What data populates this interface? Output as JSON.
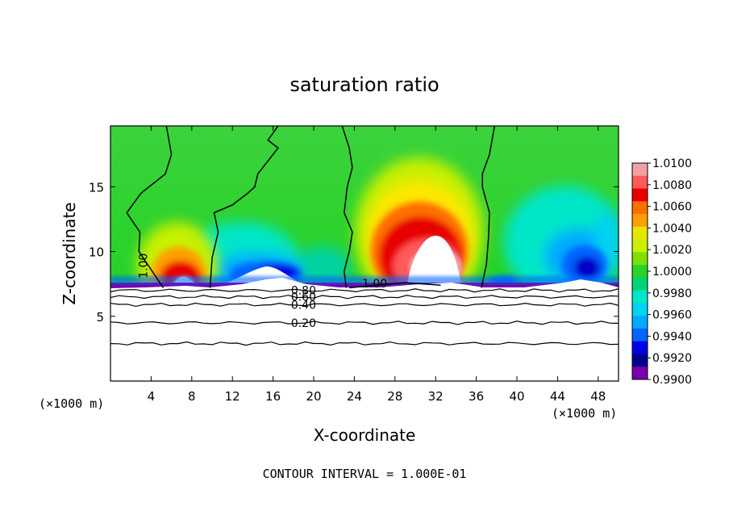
{
  "chart_data": {
    "type": "heatmap",
    "title": "saturation ratio",
    "xlabel": "X-coordinate",
    "ylabel": "Z-coordinate",
    "x_unit": "(×1000 m)",
    "xlim": [
      0,
      50
    ],
    "ylim": [
      0,
      19.7
    ],
    "x_ticks": [
      4,
      8,
      12,
      16,
      20,
      24,
      28,
      32,
      36,
      40,
      44,
      48
    ],
    "y_ticks": [
      5,
      10,
      15
    ],
    "footer": "CONTOUR INTERVAL = 1.000E-01",
    "colorbar": {
      "labels": [
        "1.0100",
        "1.0080",
        "1.0060",
        "1.0040",
        "1.0020",
        "1.0000",
        "0.9980",
        "0.9960",
        "0.9940",
        "0.9920",
        "0.9900"
      ],
      "colors": [
        "#f2a0a0",
        "#ff5a5a",
        "#e80000",
        "#ff6e00",
        "#ff9e00",
        "#e6e600",
        "#c8f000",
        "#7ee000",
        "#28d428",
        "#00d278",
        "#00e6c8",
        "#00d2f0",
        "#00aaff",
        "#0064ff",
        "#0000e6",
        "#00008c",
        "#7800a8"
      ]
    },
    "fill_features": [
      {
        "name": "low-ratio-band",
        "x": [
          0.5,
          50
        ],
        "z": [
          7.2,
          8.0
        ],
        "value": 0.9935
      },
      {
        "name": "plume-1",
        "x_center": 7.2,
        "z_top": 10.5,
        "value": 1.008
      },
      {
        "name": "plume-2",
        "x_center": 30.5,
        "z_top": 13.5,
        "value": 1.008
      },
      {
        "name": "dry-patch-1",
        "x_center": 16.5,
        "z_top": 10.8,
        "value": 0.992
      },
      {
        "name": "dry-patch-2",
        "x_center": 46,
        "z_top": 11.2,
        "value": 0.992
      }
    ],
    "contour_lines": [
      {
        "label": "1.00",
        "x": [
          5.2,
          2.8,
          2.9,
          1.6,
          3.0,
          5.4,
          6.0,
          5.5
        ],
        "z": [
          7.2,
          10.0,
          11.5,
          13.0,
          14.5,
          16.0,
          17.5,
          19.7
        ]
      },
      {
        "label": "",
        "x": [
          9.8,
          10.0,
          10.6,
          10.2,
          12.0,
          13.5,
          14.2,
          14.5,
          15.5,
          16.5,
          15.5,
          16.5
        ],
        "z": [
          7.2,
          9.5,
          11.5,
          13.0,
          13.6,
          14.5,
          15.0,
          16.0,
          17.0,
          18.0,
          18.6,
          19.7
        ]
      },
      {
        "label": "",
        "x": [
          23.2,
          23.0,
          23.5,
          23.8,
          23.0,
          23.3,
          23.8,
          23.5,
          22.8
        ],
        "z": [
          7.2,
          8.5,
          10.0,
          11.5,
          13.0,
          15.0,
          16.5,
          18.0,
          19.7
        ]
      },
      {
        "label": "",
        "x": [
          36.5,
          37.0,
          37.2,
          37.3,
          36.6,
          36.6,
          37.3,
          37.8
        ],
        "z": [
          7.2,
          9.0,
          11.0,
          13.0,
          15.0,
          16.0,
          17.5,
          19.7
        ]
      },
      {
        "label": "1.00",
        "x": [
          23.5,
          26.0,
          29.0,
          32.5
        ],
        "z": [
          7.2,
          7.4,
          7.6,
          7.4
        ]
      },
      {
        "label": "0.80",
        "x": [
          0,
          50
        ],
        "z": [
          7.0,
          7.0
        ]
      },
      {
        "label": "0.60",
        "x": [
          0,
          50
        ],
        "z": [
          6.5,
          6.5
        ]
      },
      {
        "label": "0.40",
        "x": [
          0,
          50
        ],
        "z": [
          5.9,
          5.9
        ]
      },
      {
        "label": "0.20",
        "x": [
          0,
          50
        ],
        "z": [
          4.5,
          4.5
        ]
      },
      {
        "label": "",
        "x": [
          0,
          50
        ],
        "z": [
          2.9,
          2.9
        ]
      }
    ]
  }
}
